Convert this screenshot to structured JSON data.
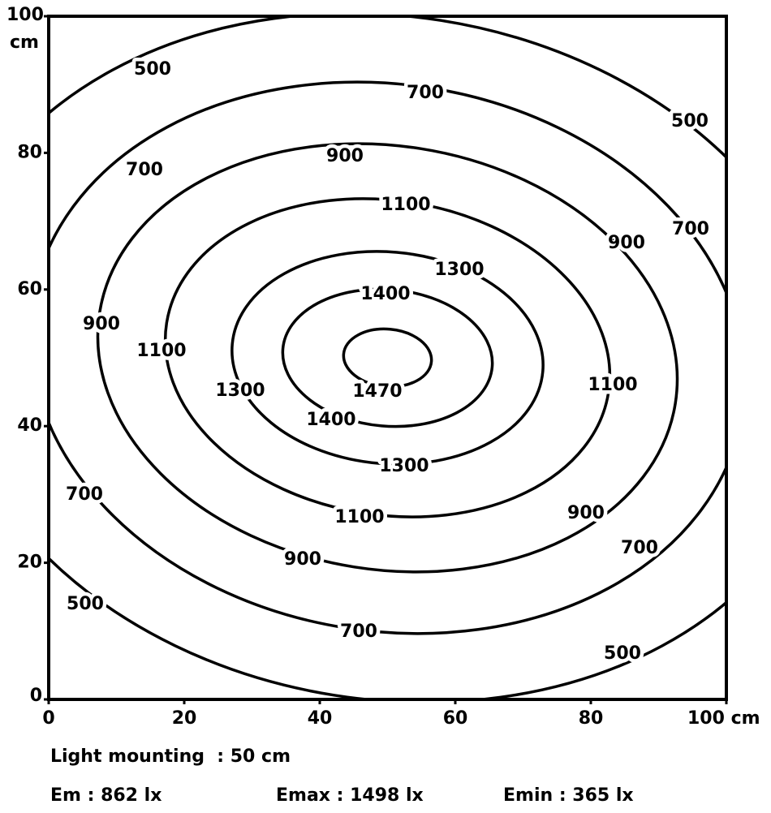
{
  "chart_data": {
    "type": "contour",
    "xlim": [
      0,
      100
    ],
    "ylim": [
      0,
      100
    ],
    "xticks": [
      0,
      20,
      40,
      60,
      80,
      {
        "value": 100,
        "label": "100 cm"
      }
    ],
    "yticks": [
      0,
      20,
      40,
      60,
      80,
      {
        "value": 100,
        "label": "100 cm"
      }
    ],
    "levels": [
      500,
      700,
      900,
      1100,
      1300,
      1400,
      1470
    ],
    "color": "#000000",
    "annotations": [
      "Light mounting  : 50 cm",
      "Em : 862 lx",
      "Emax : 1498 lx",
      "Emin : 365 lx"
    ]
  }
}
